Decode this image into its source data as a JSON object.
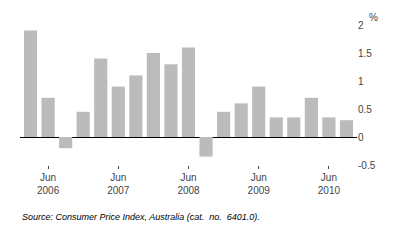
{
  "chart_data": {
    "type": "bar",
    "categories": [
      null,
      "Jun\n2006",
      null,
      null,
      null,
      "Jun\n2007",
      null,
      null,
      null,
      "Jun\n2008",
      null,
      null,
      null,
      "Jun\n2009",
      null,
      null,
      null,
      "Jun\n2010",
      null
    ],
    "values": [
      1.9,
      0.7,
      -0.2,
      0.45,
      1.4,
      0.9,
      1.1,
      1.5,
      1.3,
      1.6,
      -0.35,
      0.45,
      0.6,
      0.9,
      0.35,
      0.35,
      0.7,
      0.35,
      0.3
    ],
    "color": "#bbbbbb",
    "ylabel": "%",
    "source": "Source: Consumer Price Index, Australia (cat.  no.  6401.0).",
    "ylim": [
      -0.5,
      2.0
    ],
    "yticks": [
      -0.5,
      0.0,
      0.5,
      1.0,
      1.5,
      2.0
    ],
    "grid": false
  }
}
